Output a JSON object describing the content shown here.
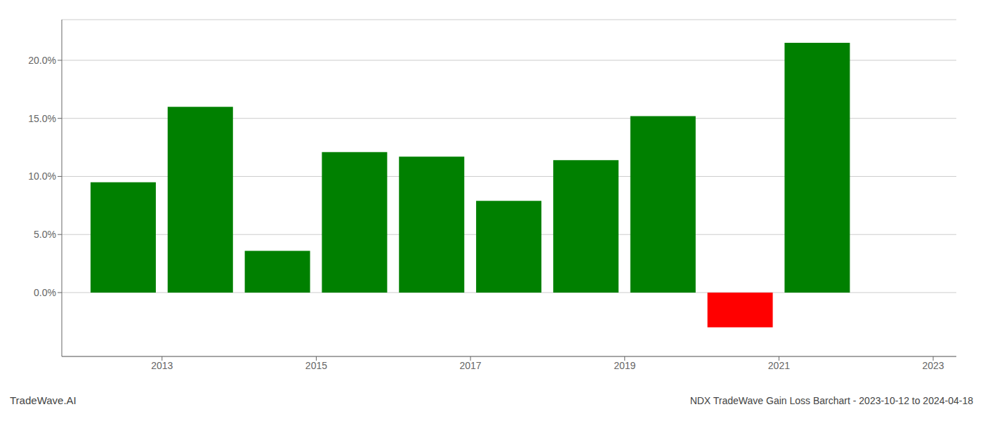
{
  "chart_data": {
    "type": "bar",
    "x": [
      2013,
      2014,
      2015,
      2016,
      2017,
      2018,
      2019,
      2020,
      2021,
      2022
    ],
    "values": [
      0.095,
      0.16,
      0.036,
      0.121,
      0.117,
      0.079,
      0.114,
      0.152,
      -0.03,
      0.215
    ],
    "colors": [
      "#008000",
      "#008000",
      "#008000",
      "#008000",
      "#008000",
      "#008000",
      "#008000",
      "#008000",
      "#ff0000",
      "#008000"
    ],
    "xlim": [
      2012.2,
      2023.8
    ],
    "xticks": [
      {
        "value": 2013.5,
        "label": "2013"
      },
      {
        "value": 2015.5,
        "label": "2015"
      },
      {
        "value": 2017.5,
        "label": "2017"
      },
      {
        "value": 2019.5,
        "label": "2019"
      },
      {
        "value": 2021.5,
        "label": "2021"
      },
      {
        "value": 2023.5,
        "label": "2023"
      }
    ],
    "ylim": [
      -0.055,
      0.235
    ],
    "yticks": [
      {
        "value": 0.0,
        "label": "0.0%"
      },
      {
        "value": 0.05,
        "label": "5.0%"
      },
      {
        "value": 0.1,
        "label": "10.0%"
      },
      {
        "value": 0.15,
        "label": "15.0%"
      },
      {
        "value": 0.2,
        "label": "20.0%"
      }
    ],
    "grid": true,
    "annotations": [
      "TradeWave.AI",
      "NDX TradeWave Gain Loss Barchart - 2023-10-12 to 2024-04-18"
    ]
  }
}
